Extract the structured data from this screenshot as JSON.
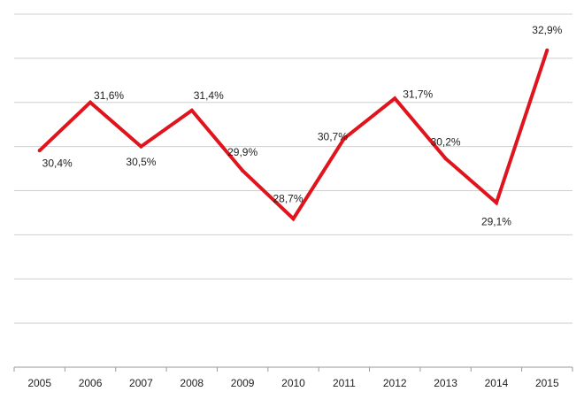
{
  "chart_data": {
    "type": "line",
    "categories": [
      "2005",
      "2006",
      "2007",
      "2008",
      "2009",
      "2010",
      "2011",
      "2012",
      "2013",
      "2014",
      "2015"
    ],
    "series": [
      {
        "values": [
          30.4,
          31.6,
          30.5,
          31.4,
          29.9,
          28.7,
          30.7,
          31.7,
          30.2,
          29.1,
          32.9
        ],
        "labels": [
          "30,4%",
          "31,6%",
          "30,5%",
          "31,4%",
          "29,9%",
          "28,7%",
          "30,7%",
          "31,7%",
          "30,2%",
          "29,1%",
          "32,9%"
        ],
        "color": "#e0141c"
      }
    ],
    "ylim": [
      25,
      33.8
    ],
    "grid": true,
    "legend": "none"
  }
}
